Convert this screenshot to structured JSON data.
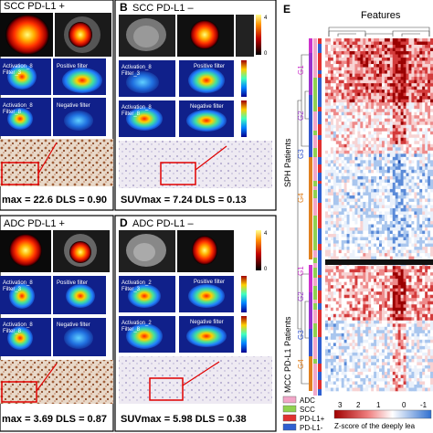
{
  "panels": {
    "B": {
      "letter": "B",
      "title": "SCC PD-L1 –",
      "tile_labels": [
        "Activation_8\nFilter_3",
        "Positive filter",
        "Activation_8\nFilter_8",
        "Negative filter"
      ],
      "metrics": "SUVmax = 7.24  DLS = 0.13",
      "colorbar_ticks": [
        "4",
        "3",
        "2",
        "1",
        "0"
      ]
    },
    "A": {
      "title": "SCC PD-L1 +",
      "tile_labels": [
        "Activation_8\nFilter_3",
        "Positive filter",
        "Activation_8\nFilter_8",
        "Negative filter"
      ],
      "metrics": "max = 22.6  DLS = 0.90",
      "colorbar_ticks": [
        "4",
        "3",
        "2",
        "1",
        "0"
      ]
    },
    "C": {
      "title": "ADC PD-L1 +",
      "tile_labels": [
        "Activation_8\nFilter_3",
        "Positive filter",
        "Activation_8\nFilter_8",
        "Negative filter"
      ],
      "metrics": "max = 3.69  DLS = 0.87",
      "colorbar_ticks": [
        "4",
        "3",
        "2",
        "1",
        "0"
      ]
    },
    "D": {
      "letter": "D",
      "title": "ADC PD-L1 –",
      "tile_labels": [
        "Activation_2\nFilter_3",
        "Positive filter",
        "Activation_2\nFilter_8",
        "Negative filter"
      ],
      "metrics": "SUVmax = 5.98  DLS = 0.38",
      "colorbar_ticks": [
        "4",
        "3",
        "2",
        "1",
        "0"
      ]
    },
    "E": {
      "letter": "E",
      "features_label": "Features",
      "sph_label": "SPH Patients",
      "mcc_label": "MCC PD-L1 Patients",
      "groups": [
        "G1",
        "G2",
        "G3",
        "G4",
        "G1",
        "G2",
        "G3",
        "G4"
      ],
      "legend": [
        "ADC",
        "SCC",
        "PD-L1+",
        "PD-L1-"
      ],
      "scale_ticks": [
        "3",
        "2",
        "1",
        "0",
        "-1"
      ],
      "scale_caption": "Z-score of the deeply lea",
      "colors": {
        "ADC": "#f2a6c8",
        "SCC": "#8fd14f",
        "PD-L1+": "#e03030",
        "PD-L1-": "#2f5fd0",
        "G1": "#cc33cc",
        "G2": "#9933cc",
        "G3": "#3355cc",
        "G4": "#e08020"
      }
    }
  }
}
